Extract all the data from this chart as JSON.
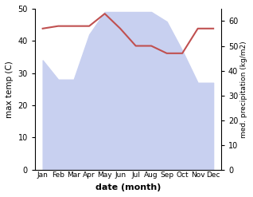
{
  "months": [
    "Jan",
    "Feb",
    "Mar",
    "Apr",
    "May",
    "Jun",
    "Jul",
    "Aug",
    "Sep",
    "Oct",
    "Nov",
    "Dec"
  ],
  "x": [
    0,
    1,
    2,
    3,
    4,
    5,
    6,
    7,
    8,
    9,
    10,
    11
  ],
  "temperature": [
    34,
    28,
    28,
    42,
    49,
    49,
    49,
    49,
    46,
    37,
    27,
    27
  ],
  "precipitation": [
    57,
    58,
    58,
    58,
    63,
    57,
    50,
    50,
    47,
    47,
    57,
    57
  ],
  "precip_fill": "#c8d0f0",
  "temp_color": "#c05050",
  "xlabel": "date (month)",
  "ylabel_left": "max temp (C)",
  "ylabel_right": "med. precipitation (kg/m2)",
  "ylim_left": [
    0,
    50
  ],
  "ylim_right": [
    0,
    65
  ],
  "bg_color": "#ffffff"
}
